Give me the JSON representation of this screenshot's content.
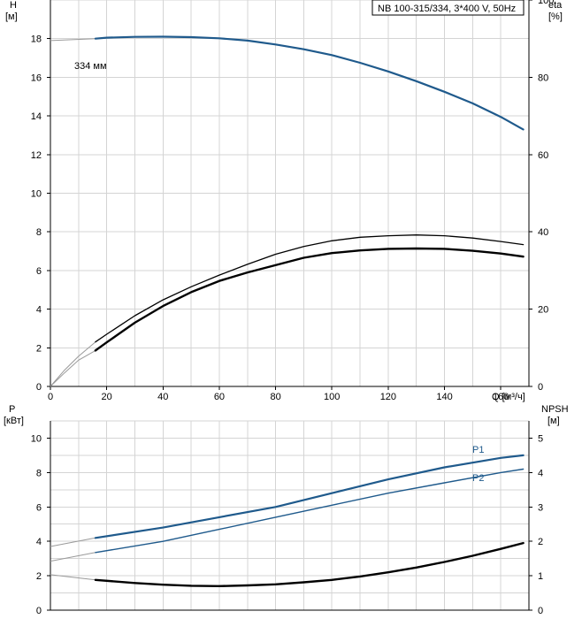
{
  "chart_data": [
    {
      "type": "line",
      "title": "NB 100-315/334, 3*400 V, 50Hz",
      "xlabel": "Q [м³/ч]",
      "ylabel": [
        "H",
        "[м]"
      ],
      "y2label": [
        "eta",
        "[%]"
      ],
      "xlim": [
        0,
        170
      ],
      "ylim": [
        0,
        20
      ],
      "y2lim": [
        0,
        100
      ],
      "x_ticks": [
        "0",
        "20",
        "40",
        "60",
        "80",
        "100",
        "120",
        "140",
        "160"
      ],
      "y_ticks": [
        "0",
        "2",
        "4",
        "6",
        "8",
        "10",
        "12",
        "14",
        "16",
        "18"
      ],
      "y2_ticks": [
        "0",
        "20",
        "40",
        "60",
        "80",
        "100"
      ],
      "grid": true,
      "annotation": "334 мм",
      "series": [
        {
          "key": "head",
          "axis": "left",
          "color": "#1f5a8c",
          "extension": [
            [
              0,
              17.9
            ],
            [
              16,
              18.0
            ]
          ],
          "points": [
            [
              16,
              18.0
            ],
            [
              20,
              18.05
            ],
            [
              30,
              18.09
            ],
            [
              40,
              18.1
            ],
            [
              50,
              18.08
            ],
            [
              60,
              18.02
            ],
            [
              70,
              17.9
            ],
            [
              80,
              17.7
            ],
            [
              90,
              17.45
            ],
            [
              100,
              17.15
            ],
            [
              110,
              16.75
            ],
            [
              120,
              16.3
            ],
            [
              130,
              15.8
            ],
            [
              140,
              15.25
            ],
            [
              150,
              14.65
            ],
            [
              160,
              13.95
            ],
            [
              168,
              13.3
            ]
          ]
        },
        {
          "key": "eta-total",
          "axis": "right",
          "color": "#000000",
          "extension": [
            [
              0,
              0
            ],
            [
              5,
              3.5
            ],
            [
              10,
              6.8
            ],
            [
              16,
              9.3
            ]
          ],
          "points": [
            [
              16,
              9.3
            ],
            [
              20,
              11.4
            ],
            [
              30,
              16.5
            ],
            [
              40,
              20.8
            ],
            [
              50,
              24.4
            ],
            [
              60,
              27.3
            ],
            [
              70,
              29.5
            ],
            [
              78,
              31.0
            ],
            [
              90,
              33.3
            ],
            [
              100,
              34.5
            ],
            [
              110,
              35.2
            ],
            [
              120,
              35.6
            ],
            [
              130,
              35.7
            ],
            [
              140,
              35.6
            ],
            [
              150,
              35.1
            ],
            [
              160,
              34.4
            ],
            [
              168,
              33.6
            ]
          ]
        },
        {
          "key": "eta-hydraulic",
          "axis": "right",
          "color": "#000000",
          "extension": [
            [
              0,
              0
            ],
            [
              5,
              4.2
            ],
            [
              10,
              7.8
            ],
            [
              16,
              11.5
            ]
          ],
          "points": [
            [
              16,
              11.5
            ],
            [
              20,
              13.5
            ],
            [
              30,
              18.3
            ],
            [
              40,
              22.4
            ],
            [
              50,
              25.8
            ],
            [
              60,
              28.8
            ],
            [
              70,
              31.6
            ],
            [
              80,
              34.2
            ],
            [
              90,
              36.2
            ],
            [
              100,
              37.7
            ],
            [
              110,
              38.6
            ],
            [
              120,
              39.0
            ],
            [
              130,
              39.2
            ],
            [
              140,
              39.0
            ],
            [
              150,
              38.4
            ],
            [
              160,
              37.5
            ],
            [
              168,
              36.7
            ]
          ]
        }
      ]
    },
    {
      "type": "line",
      "xlim": [
        0,
        170
      ],
      "ylim": [
        0,
        11
      ],
      "y2lim": [
        0,
        5.5
      ],
      "ylabel": [
        "P",
        "[кВт]"
      ],
      "y2label": [
        "NPSH",
        "[м]"
      ],
      "y_ticks": [
        "0",
        "2",
        "4",
        "6",
        "8",
        "10"
      ],
      "y2_ticks": [
        "0",
        "1",
        "2",
        "3",
        "4",
        "5"
      ],
      "grid": true,
      "series": [
        {
          "key": "p1",
          "name": "P1",
          "axis": "left",
          "color": "#1f5a8c",
          "extension": [
            [
              0,
              3.7
            ],
            [
              16,
              4.2
            ]
          ],
          "points": [
            [
              16,
              4.2
            ],
            [
              40,
              4.8
            ],
            [
              60,
              5.4
            ],
            [
              80,
              6.0
            ],
            [
              100,
              6.8
            ],
            [
              120,
              7.6
            ],
            [
              140,
              8.3
            ],
            [
              160,
              8.85
            ],
            [
              168,
              9.0
            ]
          ]
        },
        {
          "key": "p2",
          "name": "P2",
          "axis": "left",
          "color": "#1f5a8c",
          "extension": [
            [
              0,
              2.85
            ],
            [
              16,
              3.35
            ]
          ],
          "points": [
            [
              16,
              3.35
            ],
            [
              40,
              4.0
            ],
            [
              60,
              4.7
            ],
            [
              80,
              5.4
            ],
            [
              100,
              6.1
            ],
            [
              120,
              6.8
            ],
            [
              140,
              7.4
            ],
            [
              160,
              8.0
            ],
            [
              168,
              8.2
            ]
          ]
        },
        {
          "key": "npsh",
          "axis": "right",
          "color": "#000000",
          "extension": [
            [
              0,
              1.03
            ],
            [
              16,
              0.88
            ]
          ],
          "points": [
            [
              16,
              0.88
            ],
            [
              30,
              0.79
            ],
            [
              40,
              0.74
            ],
            [
              50,
              0.71
            ],
            [
              60,
              0.7
            ],
            [
              70,
              0.72
            ],
            [
              80,
              0.75
            ],
            [
              90,
              0.81
            ],
            [
              100,
              0.88
            ],
            [
              110,
              0.98
            ],
            [
              120,
              1.1
            ],
            [
              130,
              1.24
            ],
            [
              140,
              1.4
            ],
            [
              150,
              1.58
            ],
            [
              160,
              1.78
            ],
            [
              168,
              1.95
            ]
          ]
        }
      ]
    }
  ]
}
